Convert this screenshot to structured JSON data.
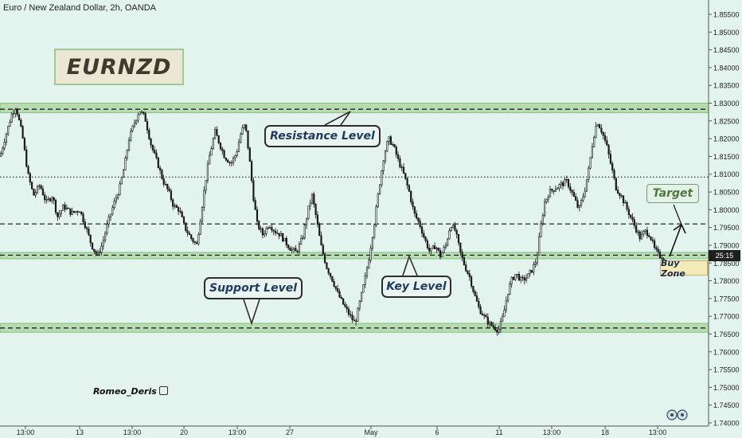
{
  "header": {
    "title": "Euro / New Zealand Dollar, 2h, OANDA"
  },
  "annotations": {
    "ticker": "EURNZD",
    "resistance": "Resistance Level",
    "support": "Support Level",
    "key": "Key Level",
    "target": "Target",
    "buy_zone": "Buy Zone",
    "author": "Romeo_Deris",
    "countdown": "25:15"
  },
  "colors": {
    "background": "#e3f4ef",
    "zone_fill": "#b6dcb0",
    "zone_border": "#7fbf7a",
    "candle": "#1a1a1a",
    "text": "#1e3a5f"
  },
  "icons": {
    "thumb": "thumbs-up-icon",
    "logo": "tradingview-logo-icon"
  },
  "chart_data": {
    "type": "candlestick",
    "y_axis": {
      "range": [
        1.7375,
        1.86
      ],
      "ticks": [
        "1.85500",
        "1.85000",
        "1.84500",
        "1.84000",
        "1.83500",
        "1.83000",
        "1.82500",
        "1.82000",
        "1.81500",
        "1.81000",
        "1.80500",
        "1.80000",
        "1.79500",
        "1.79000",
        "1.78500",
        "1.78000",
        "1.77500",
        "1.77000",
        "1.76500",
        "1.76000",
        "1.75500",
        "1.75000",
        "1.74500",
        "1.74000"
      ],
      "tick_values": [
        1.855,
        1.85,
        1.845,
        1.84,
        1.835,
        1.83,
        1.825,
        1.82,
        1.815,
        1.81,
        1.805,
        1.8,
        1.795,
        1.79,
        1.785,
        1.78,
        1.775,
        1.77,
        1.765,
        1.76,
        1.755,
        1.75,
        1.745,
        1.74
      ]
    },
    "x_axis": {
      "labels": [
        "13:00",
        "13",
        "13:00",
        "20",
        "13:00",
        "27",
        "May",
        "6",
        "11",
        "13:00",
        "18",
        "13:00"
      ],
      "positions": [
        32,
        100,
        166,
        231,
        298,
        364,
        466,
        549,
        627,
        693,
        760,
        826
      ]
    },
    "zones": [
      {
        "name": "resistance",
        "top": 1.83,
        "bottom": 1.8273,
        "line": 1.8283
      },
      {
        "name": "key",
        "top": 1.788,
        "bottom": 1.7862,
        "line": 1.7872
      },
      {
        "name": "support",
        "top": 1.768,
        "bottom": 1.7655,
        "line": 1.7667
      }
    ],
    "lines": [
      {
        "style": "dotted",
        "value": 1.8092
      },
      {
        "style": "dashed",
        "value": 1.796
      }
    ],
    "current_price_countdown": "25:15",
    "path": [
      [
        0,
        1.815
      ],
      [
        6,
        1.82
      ],
      [
        15,
        1.827
      ],
      [
        20,
        1.829
      ],
      [
        28,
        1.821
      ],
      [
        35,
        1.81
      ],
      [
        42,
        1.804
      ],
      [
        50,
        1.807
      ],
      [
        58,
        1.802
      ],
      [
        66,
        1.804
      ],
      [
        72,
        1.798
      ],
      [
        80,
        1.801
      ],
      [
        90,
        1.799
      ],
      [
        100,
        1.8
      ],
      [
        108,
        1.795
      ],
      [
        115,
        1.79
      ],
      [
        122,
        1.787
      ],
      [
        128,
        1.79
      ],
      [
        135,
        1.796
      ],
      [
        142,
        1.801
      ],
      [
        150,
        1.806
      ],
      [
        156,
        1.812
      ],
      [
        162,
        1.82
      ],
      [
        168,
        1.824
      ],
      [
        175,
        1.828
      ],
      [
        182,
        1.826
      ],
      [
        190,
        1.818
      ],
      [
        198,
        1.813
      ],
      [
        205,
        1.808
      ],
      [
        212,
        1.805
      ],
      [
        218,
        1.801
      ],
      [
        225,
        1.8
      ],
      [
        232,
        1.795
      ],
      [
        240,
        1.792
      ],
      [
        247,
        1.79
      ],
      [
        252,
        1.798
      ],
      [
        258,
        1.808
      ],
      [
        263,
        1.815
      ],
      [
        270,
        1.822
      ],
      [
        275,
        1.819
      ],
      [
        282,
        1.815
      ],
      [
        290,
        1.813
      ],
      [
        297,
        1.816
      ],
      [
        303,
        1.822
      ],
      [
        308,
        1.824
      ],
      [
        313,
        1.815
      ],
      [
        318,
        1.804
      ],
      [
        323,
        1.796
      ],
      [
        330,
        1.793
      ],
      [
        338,
        1.796
      ],
      [
        345,
        1.794
      ],
      [
        352,
        1.793
      ],
      [
        358,
        1.791
      ],
      [
        365,
        1.789
      ],
      [
        372,
        1.788
      ],
      [
        380,
        1.792
      ],
      [
        387,
        1.8
      ],
      [
        392,
        1.804
      ],
      [
        397,
        1.798
      ],
      [
        403,
        1.79
      ],
      [
        410,
        1.784
      ],
      [
        418,
        1.78
      ],
      [
        425,
        1.776
      ],
      [
        432,
        1.773
      ],
      [
        440,
        1.77
      ],
      [
        446,
        1.768
      ],
      [
        452,
        1.774
      ],
      [
        458,
        1.78
      ],
      [
        463,
        1.786
      ],
      [
        470,
        1.796
      ],
      [
        476,
        1.806
      ],
      [
        482,
        1.815
      ],
      [
        488,
        1.82
      ],
      [
        494,
        1.818
      ],
      [
        500,
        1.814
      ],
      [
        507,
        1.81
      ],
      [
        514,
        1.805
      ],
      [
        520,
        1.799
      ],
      [
        527,
        1.796
      ],
      [
        533,
        1.792
      ],
      [
        540,
        1.788
      ],
      [
        547,
        1.79
      ],
      [
        553,
        1.787
      ],
      [
        560,
        1.79
      ],
      [
        566,
        1.796
      ],
      [
        572,
        1.794
      ],
      [
        578,
        1.788
      ],
      [
        584,
        1.784
      ],
      [
        590,
        1.781
      ],
      [
        596,
        1.776
      ],
      [
        602,
        1.772
      ],
      [
        608,
        1.77
      ],
      [
        614,
        1.768
      ],
      [
        620,
        1.767
      ],
      [
        626,
        1.766
      ],
      [
        632,
        1.77
      ],
      [
        637,
        1.776
      ],
      [
        642,
        1.78
      ],
      [
        648,
        1.782
      ],
      [
        655,
        1.78
      ],
      [
        662,
        1.781
      ],
      [
        668,
        1.783
      ],
      [
        674,
        1.786
      ],
      [
        679,
        1.795
      ],
      [
        684,
        1.802
      ],
      [
        690,
        1.805
      ],
      [
        697,
        1.806
      ],
      [
        704,
        1.807
      ],
      [
        712,
        1.808
      ],
      [
        720,
        1.804
      ],
      [
        727,
        1.8
      ],
      [
        734,
        1.805
      ],
      [
        740,
        1.812
      ],
      [
        745,
        1.82
      ],
      [
        750,
        1.825
      ],
      [
        756,
        1.822
      ],
      [
        762,
        1.818
      ],
      [
        768,
        1.812
      ],
      [
        774,
        1.806
      ],
      [
        780,
        1.804
      ],
      [
        786,
        1.801
      ],
      [
        792,
        1.798
      ],
      [
        798,
        1.795
      ],
      [
        804,
        1.792
      ],
      [
        810,
        1.794
      ],
      [
        816,
        1.793
      ],
      [
        822,
        1.789
      ],
      [
        828,
        1.787
      ],
      [
        833,
        1.7868
      ]
    ]
  }
}
